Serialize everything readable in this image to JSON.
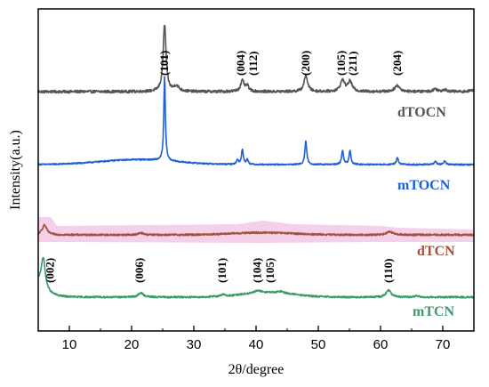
{
  "chart_data": {
    "type": "line",
    "xlabel": "2θ/degree",
    "ylabel": "Intensity(a.u.)",
    "xlim": [
      5,
      75
    ],
    "xticks": [
      10,
      20,
      30,
      40,
      50,
      60,
      70
    ],
    "colors": {
      "dTOCN": "#555555",
      "mTOCN": "#1f5fd6",
      "dTCN": "#a0523c",
      "mTCN": "#3a9a6a",
      "dTCN_band": "#f3c8e6"
    },
    "series": [
      {
        "name": "dTOCN",
        "baseline": 0.0,
        "noise": 0.02,
        "peaks": [
          {
            "x": 25.3,
            "h": 1.0,
            "w": 0.28
          },
          {
            "x": 27.2,
            "h": 0.08,
            "w": 0.5
          },
          {
            "x": 37.8,
            "h": 0.16,
            "w": 0.35
          },
          {
            "x": 38.6,
            "h": 0.08,
            "w": 0.3
          },
          {
            "x": 48.0,
            "h": 0.24,
            "w": 0.35
          },
          {
            "x": 53.9,
            "h": 0.17,
            "w": 0.4
          },
          {
            "x": 55.1,
            "h": 0.15,
            "w": 0.4
          },
          {
            "x": 62.7,
            "h": 0.09,
            "w": 0.5
          },
          {
            "x": 68.8,
            "h": 0.04,
            "w": 0.4
          },
          {
            "x": 70.3,
            "h": 0.03,
            "w": 0.4
          },
          {
            "x": 75.0,
            "h": 0.03,
            "w": 0.5
          }
        ]
      },
      {
        "name": "mTOCN",
        "baseline": 0.0,
        "noise": 0.008,
        "hump": {
          "x": 21,
          "h": 0.06,
          "w": 6
        },
        "peaks": [
          {
            "x": 25.3,
            "h": 1.0,
            "w": 0.15
          },
          {
            "x": 37.0,
            "h": 0.05,
            "w": 0.2
          },
          {
            "x": 37.8,
            "h": 0.18,
            "w": 0.18
          },
          {
            "x": 38.6,
            "h": 0.06,
            "w": 0.18
          },
          {
            "x": 48.0,
            "h": 0.28,
            "w": 0.18
          },
          {
            "x": 53.9,
            "h": 0.17,
            "w": 0.18
          },
          {
            "x": 55.1,
            "h": 0.17,
            "w": 0.18
          },
          {
            "x": 62.7,
            "h": 0.08,
            "w": 0.2
          },
          {
            "x": 68.8,
            "h": 0.04,
            "w": 0.2
          },
          {
            "x": 70.3,
            "h": 0.04,
            "w": 0.2
          }
        ]
      },
      {
        "name": "dTCN",
        "baseline": 0.0,
        "noise": 0.02,
        "hump": {
          "x": 41,
          "h": 0.05,
          "w": 5
        },
        "peaks": [
          {
            "x": 6.0,
            "h": 0.22,
            "w": 0.45
          },
          {
            "x": 21.5,
            "h": 0.04,
            "w": 0.5
          },
          {
            "x": 61.5,
            "h": 0.07,
            "w": 0.6
          }
        ]
      },
      {
        "name": "mTCN",
        "baseline": 0.0,
        "noise": 0.015,
        "hump": {
          "x": 42,
          "h": 0.08,
          "w": 4
        },
        "decay": {
          "h": 0.25,
          "rate": 0.8
        },
        "peaks": [
          {
            "x": 5.8,
            "h": 0.55,
            "w": 0.4
          },
          {
            "x": 21.5,
            "h": 0.07,
            "w": 0.5
          },
          {
            "x": 34.6,
            "h": 0.03,
            "w": 0.5
          },
          {
            "x": 40.3,
            "h": 0.04,
            "w": 0.6
          },
          {
            "x": 44.0,
            "h": 0.03,
            "w": 0.5
          },
          {
            "x": 61.3,
            "h": 0.12,
            "w": 0.45
          },
          {
            "x": 65.8,
            "h": 0.02,
            "w": 0.4
          }
        ]
      }
    ],
    "peak_labels": [
      {
        "series": "dTOCN",
        "text": "(101)",
        "x": 25.3
      },
      {
        "series": "dTOCN",
        "text": "(004)",
        "x": 37.6
      },
      {
        "series": "dTOCN",
        "text": "(112)",
        "x": 39.6
      },
      {
        "series": "dTOCN",
        "text": "(200)",
        "x": 48.0
      },
      {
        "series": "dTOCN",
        "text": "(105)",
        "x": 53.7
      },
      {
        "series": "dTOCN",
        "text": "(211)",
        "x": 55.6
      },
      {
        "series": "dTOCN",
        "text": "(204)",
        "x": 62.7
      },
      {
        "series": "mTCN",
        "text": "(002)",
        "x": 6.9
      },
      {
        "series": "mTCN",
        "text": "(006)",
        "x": 21.3
      },
      {
        "series": "mTCN",
        "text": "(101)",
        "x": 34.6
      },
      {
        "series": "mTCN",
        "text": "(104)",
        "x": 40.2
      },
      {
        "series": "mTCN",
        "text": "(105)",
        "x": 42.3
      },
      {
        "series": "mTCN",
        "text": "(110)",
        "x": 61.3
      }
    ]
  }
}
